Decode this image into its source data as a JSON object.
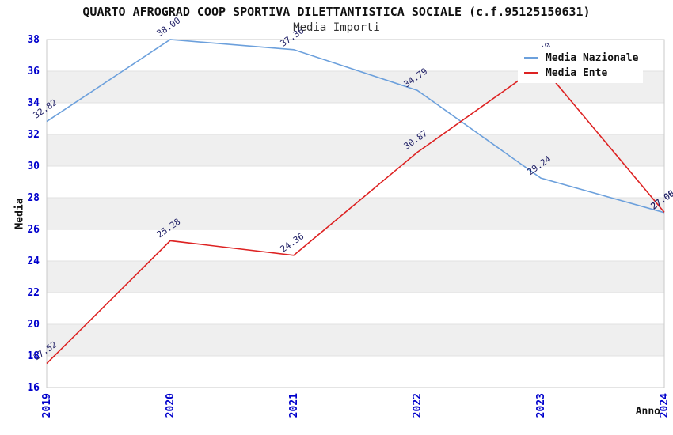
{
  "title": "QUARTO AFROGRAD COOP SPORTIVA DILETTANTISTICA SOCIALE (c.f.95125150631)",
  "subtitle": "Media Importi",
  "chart_data": {
    "type": "line",
    "categories": [
      "2019",
      "2020",
      "2021",
      "2022",
      "2023",
      "2024"
    ],
    "series": [
      {
        "name": "Media Nazionale",
        "color": "#6CA0DC",
        "values": [
          32.82,
          38.0,
          37.36,
          34.79,
          29.24,
          27.06
        ]
      },
      {
        "name": "Media Ente",
        "color": "#DD2222",
        "values": [
          17.52,
          25.28,
          24.36,
          30.87,
          36.4,
          27.08
        ]
      }
    ],
    "xlabel": "Anno",
    "ylabel": "Media",
    "ylim": [
      16,
      38
    ],
    "ytick_step": 2,
    "grid": "alternating-horizontal-bands",
    "legend_position": "top-right",
    "band_color": "#EFEFEF",
    "grid_line_color": "#E2E2E2",
    "axis_box_color": "#C9C9C9",
    "tick_label_color": "#0000CC",
    "data_label_color": "#202066"
  }
}
